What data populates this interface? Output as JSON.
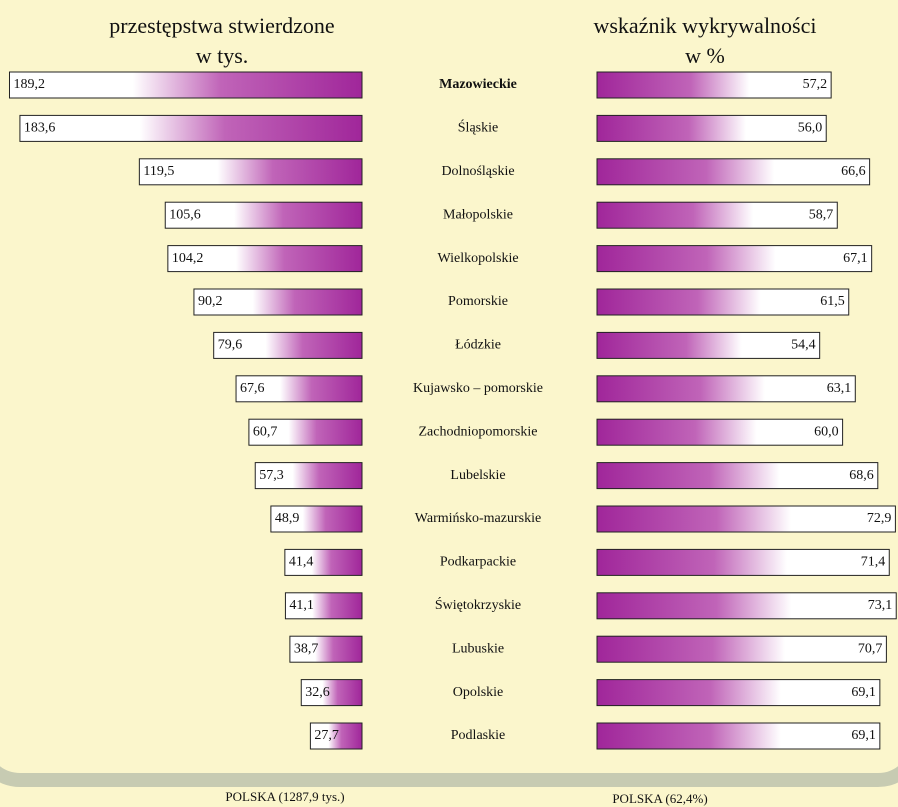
{
  "chart_data": [
    {
      "type": "bar",
      "orientation": "left",
      "title": "przestępstwa stwierdzone",
      "subtitle": "w tys.",
      "categories": [
        "Mazowieckie",
        "Śląskie",
        "Dolnośląskie",
        "Małopolskie",
        "Wielkopolskie",
        "Pomorskie",
        "Łódzkie",
        "Kujawsko – pomorskie",
        "Zachodniopomorskie",
        "Lubelskie",
        "Warmińsko-mazurskie",
        "Podkarpackie",
        "Świętokrzyskie",
        "Lubuskie",
        "Opolskie",
        "Podlaskie"
      ],
      "values": [
        189.2,
        183.6,
        119.5,
        105.6,
        104.2,
        90.2,
        79.6,
        67.6,
        60.7,
        57.3,
        48.9,
        41.4,
        41.1,
        38.7,
        32.6,
        27.7
      ],
      "value_labels": [
        "189,2",
        "183,6",
        "119,5",
        "105,6",
        "104,2",
        "90,2",
        "79,6",
        "67,6",
        "60,7",
        "57,3",
        "48,9",
        "41,4",
        "41,1",
        "38,7",
        "32,6",
        "27,7"
      ],
      "xlim": [
        0,
        190
      ],
      "color": "#a0269a",
      "annotation": "POLSKA (1287,9 tys.)"
    },
    {
      "type": "bar",
      "orientation": "right",
      "title": "wskaźnik wykrywalności",
      "subtitle": "w %",
      "values": [
        57.2,
        56.0,
        66.6,
        58.7,
        67.1,
        61.5,
        54.4,
        63.1,
        60.0,
        68.6,
        72.9,
        71.4,
        73.1,
        70.7,
        69.1,
        69.1
      ],
      "value_labels": [
        "57,2",
        "56,0",
        "66,6",
        "58,7",
        "67,1",
        "61,5",
        "54,4",
        "63,1",
        "60,0",
        "68,6",
        "72,9",
        "71,4",
        "73,1",
        "70,7",
        "69,1",
        "69,1"
      ],
      "xlim": [
        0,
        75
      ],
      "color": "#a0269a",
      "annotation": "POLSKA (62,4%)"
    }
  ]
}
